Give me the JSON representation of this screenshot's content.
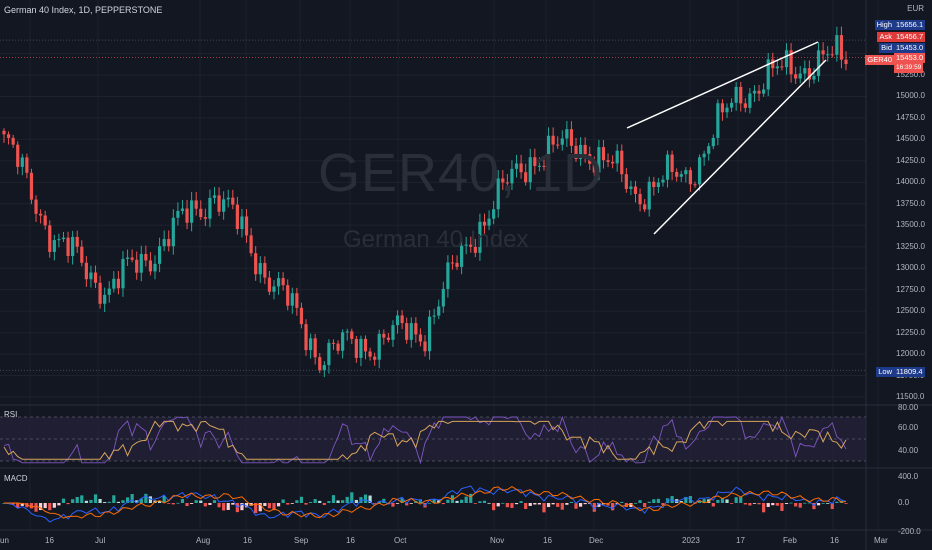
{
  "header": {
    "title": "German 40 Index, 1D, PEPPERSTONE",
    "currency": "EUR"
  },
  "watermark": {
    "symbol": "GER40, 1D",
    "name": "German 40 Index"
  },
  "colors": {
    "background": "#131722",
    "up": "#26a69a",
    "down": "#ef5350",
    "grid": "#1e222d",
    "rsi_band": "#2a2540",
    "rsi_line": "#7e57c2",
    "rsi_ma": "#d6a45c",
    "macd_line": "#2962ff",
    "signal_line": "#ff6d00",
    "high_tag": "#1e3a8a",
    "ask_tag": "#e03b3b",
    "bid_tag": "#1e3a8a",
    "low_tag": "#1e3a8a"
  },
  "price_tags": [
    {
      "label": "High",
      "value": "15656.1",
      "kind": "high"
    },
    {
      "label": "Ask",
      "value": "15456.7",
      "kind": "ask"
    },
    {
      "label": "Bid",
      "value": "15453.0",
      "kind": "bid"
    },
    {
      "label": "GER40",
      "value": "15453.0",
      "kind": "last"
    },
    {
      "label": "",
      "value": "16:39:59",
      "kind": "countdown"
    },
    {
      "label": "Low",
      "value": "11809.4",
      "kind": "low"
    }
  ],
  "price_axis": [
    "15250.0",
    "15000.0",
    "14750.0",
    "14500.0",
    "14250.0",
    "14000.0",
    "13750.0",
    "13500.0",
    "13250.0",
    "13000.0",
    "12750.0",
    "12500.0",
    "12250.0",
    "12000.0",
    "11750.0",
    "11500.0"
  ],
  "rsi": {
    "label": "RSI",
    "ticks": [
      "80.00",
      "60.00",
      "40.00"
    ]
  },
  "macd": {
    "label": "MACD",
    "ticks": [
      "400.0",
      "0.0",
      "-200.0"
    ]
  },
  "time_axis": [
    "un",
    "16",
    "Jul",
    "Aug",
    "16",
    "Sep",
    "16",
    "Oct",
    "Nov",
    "16",
    "Dec",
    "2023",
    "17",
    "Feb",
    "16",
    "Mar"
  ],
  "chart_data": {
    "type": "candlestick",
    "title": "German 40 Index, 1D, PEPPERSTONE",
    "y_unit": "EUR",
    "ylim": [
      11400,
      15900
    ],
    "high": 15656.1,
    "low": 11809.4,
    "last": 15453.0,
    "approx_close_path": [
      {
        "x": "Jun",
        "close": 14500
      },
      {
        "x": "mid-Jun",
        "close": 13300
      },
      {
        "x": "Jul",
        "close": 12750
      },
      {
        "x": "early Aug",
        "close": 13300
      },
      {
        "x": "mid-Aug",
        "close": 13900
      },
      {
        "x": "Sep",
        "close": 12950
      },
      {
        "x": "late Sep",
        "close": 12000
      },
      {
        "x": "Oct",
        "close": 12150
      },
      {
        "x": "mid-Oct",
        "close": 12300
      },
      {
        "x": "Nov",
        "close": 13500
      },
      {
        "x": "mid-Nov",
        "close": 14300
      },
      {
        "x": "Dec",
        "close": 14450
      },
      {
        "x": "mid-Dec",
        "close": 13900
      },
      {
        "x": "2023",
        "close": 14100
      },
      {
        "x": "mid-Jan",
        "close": 15050
      },
      {
        "x": "Feb",
        "close": 15350
      },
      {
        "x": "mid-Feb",
        "close": 15450
      }
    ]
  }
}
